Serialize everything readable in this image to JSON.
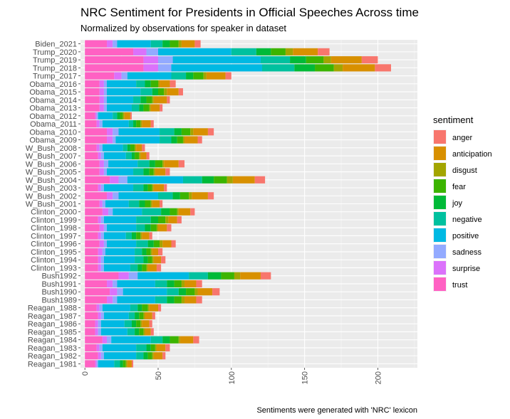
{
  "chart_data": {
    "type": "bar",
    "orientation": "horizontal",
    "stacked": true,
    "title": "NRC Sentiment for Presidents in Official Speeches Across time",
    "subtitle": "Normalized by observations for speaker in dataset",
    "caption": "Sentiments were generated with 'NRC' lexicon",
    "legend_title": "sentiment",
    "legend_position": "right",
    "grid": true,
    "xlim": [
      -3,
      227
    ],
    "x_ticks": [
      0,
      50,
      100,
      150,
      200
    ],
    "x_tick_labels": [
      "0",
      "50",
      "100",
      "150",
      "200"
    ],
    "categories": [
      "Biden_2021",
      "Trump_2020",
      "Trump_2019",
      "Trump_2018",
      "Trump_2017",
      "Obama_2016",
      "Obama_2015",
      "Obama_2014",
      "Obama_2013",
      "Obama_2012",
      "Obama_2011",
      "Obama_2010",
      "Obama_2009",
      "W_Bush_2008",
      "W_Bush_2007",
      "W_Bush_2006",
      "W_Bush_2005",
      "W_Bush_2004",
      "W_Bush_2003",
      "W_Bush_2002",
      "W_Bush_2001",
      "Clinton_2000",
      "Clinton_1999",
      "Clinton_1998",
      "Clinton_1997",
      "Clinton_1996",
      "Clinton_1995",
      "Clinton_1994",
      "Clinton_1993",
      "Bush1992",
      "Bush1991",
      "Bush1990",
      "Bush1989",
      "Reagan_1988",
      "Reagan_1987",
      "Reagan_1986",
      "Reagan_1985",
      "Reagan_1984",
      "Reagan_1983",
      "Reagan_1982",
      "Reagan_1981"
    ],
    "series": [
      {
        "name": "trust",
        "color": "#FF61C3",
        "values": [
          15,
          33,
          40,
          40,
          20,
          10,
          10,
          10,
          10,
          7,
          8,
          15,
          15,
          8,
          9,
          10,
          10,
          17,
          9,
          15,
          10,
          12,
          9,
          10,
          9,
          10,
          9,
          9,
          9,
          23,
          15,
          17,
          15,
          8,
          9,
          7,
          7,
          12,
          8,
          9,
          7
        ]
      },
      {
        "name": "surprise",
        "color": "#DB72FB",
        "values": [
          4,
          9,
          10,
          10,
          5,
          3,
          3,
          3,
          3,
          1,
          2,
          4,
          4,
          2,
          2,
          3,
          3,
          6,
          2,
          4,
          2,
          4,
          2,
          3,
          2,
          3,
          3,
          2,
          2,
          7,
          4,
          5,
          4,
          2,
          2,
          2,
          2,
          3,
          2,
          2,
          1
        ]
      },
      {
        "name": "sadness",
        "color": "#93AAFF",
        "values": [
          3,
          8,
          10,
          9,
          4,
          2,
          2,
          2,
          2,
          1,
          2,
          4,
          2,
          2,
          2,
          3,
          2,
          6,
          2,
          4,
          2,
          3,
          2,
          2,
          2,
          2,
          2,
          2,
          2,
          6,
          3,
          4,
          3,
          2,
          2,
          2,
          2,
          3,
          2,
          2,
          1
        ]
      },
      {
        "name": "positive",
        "color": "#00B9E3",
        "values": [
          23,
          50,
          60,
          62,
          30,
          20,
          23,
          18,
          17,
          10,
          18,
          28,
          30,
          14,
          15,
          20,
          18,
          38,
          20,
          27,
          16,
          20,
          22,
          20,
          15,
          20,
          20,
          21,
          18,
          35,
          26,
          30,
          26,
          19,
          17,
          16,
          18,
          27,
          23,
          22,
          11
        ]
      },
      {
        "name": "negative",
        "color": "#00C19F",
        "values": [
          8,
          17,
          20,
          22,
          10,
          6,
          8,
          5,
          5,
          3,
          3,
          10,
          8,
          3,
          4,
          8,
          7,
          13,
          7,
          10,
          7,
          13,
          10,
          6,
          4,
          8,
          5,
          6,
          5,
          13,
          8,
          8,
          8,
          5,
          4,
          5,
          5,
          8,
          7,
          5,
          4
        ]
      },
      {
        "name": "joy",
        "color": "#00BA38",
        "values": [
          5,
          10,
          11,
          14,
          5,
          4,
          4,
          4,
          3,
          2,
          2,
          5,
          4,
          2,
          2,
          4,
          4,
          8,
          3,
          5,
          4,
          6,
          5,
          4,
          3,
          4,
          3,
          3,
          3,
          9,
          5,
          5,
          5,
          3,
          3,
          3,
          3,
          5,
          3,
          3,
          2
        ]
      },
      {
        "name": "fear",
        "color": "#3CB400",
        "values": [
          6,
          10,
          12,
          13,
          7,
          5,
          4,
          4,
          4,
          2,
          3,
          6,
          4,
          3,
          3,
          5,
          3,
          9,
          3,
          6,
          4,
          5,
          5,
          4,
          3,
          4,
          3,
          3,
          3,
          9,
          5,
          6,
          5,
          4,
          3,
          3,
          3,
          6,
          3,
          3,
          2
        ]
      },
      {
        "name": "disgust",
        "color": "#A3A500",
        "values": [
          2,
          5,
          5,
          6,
          2,
          1,
          2,
          1,
          1,
          1,
          1,
          2,
          1,
          1,
          1,
          1,
          1,
          4,
          1,
          2,
          1,
          1,
          2,
          1,
          1,
          2,
          1,
          1,
          1,
          4,
          2,
          2,
          2,
          1,
          1,
          1,
          1,
          1,
          1,
          1,
          1
        ]
      },
      {
        "name": "anticipation",
        "color": "#D89000",
        "values": [
          9,
          17,
          21,
          22,
          13,
          7,
          8,
          9,
          6,
          4,
          6,
          10,
          9,
          4,
          4,
          10,
          7,
          15,
          7,
          11,
          5,
          8,
          6,
          6,
          5,
          6,
          4,
          5,
          6,
          14,
          8,
          10,
          8,
          6,
          5,
          5,
          4,
          9,
          6,
          6,
          3
        ]
      },
      {
        "name": "anger",
        "color": "#F8766D",
        "values": [
          4,
          8,
          11,
          11,
          4,
          4,
          3,
          2,
          2,
          1,
          2,
          4,
          3,
          2,
          2,
          4,
          3,
          7,
          2,
          4,
          2,
          3,
          3,
          3,
          2,
          3,
          3,
          3,
          3,
          7,
          4,
          5,
          4,
          2,
          2,
          2,
          2,
          4,
          3,
          2,
          1
        ]
      }
    ],
    "legend_order": [
      "anger",
      "anticipation",
      "disgust",
      "fear",
      "joy",
      "negative",
      "positive",
      "sadness",
      "surprise",
      "trust"
    ]
  }
}
